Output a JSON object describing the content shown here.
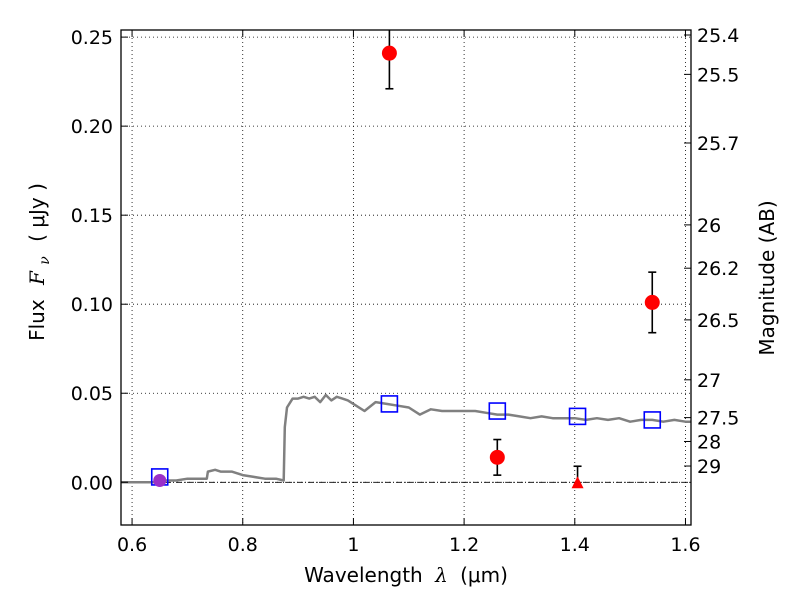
{
  "chart_data": {
    "type": "scatter",
    "xlabel": "Wavelength",
    "xlabel_symbol": "λ",
    "xlabel_unit": "(μm)",
    "ylabel": "Flux",
    "ylabel_symbol": "F",
    "ylabel_symbol_sub": "ν",
    "ylabel_unit": "( μJy )",
    "y2label": "Magnitude (AB)",
    "xlim": [
      0.58,
      1.61
    ],
    "ylim": [
      -0.024,
      0.254
    ],
    "xticks": [
      {
        "value": 0.6,
        "label": "0.6"
      },
      {
        "value": 0.8,
        "label": "0.8"
      },
      {
        "value": 1.0,
        "label": "1"
      },
      {
        "value": 1.2,
        "label": "1.2"
      },
      {
        "value": 1.4,
        "label": "1.4"
      },
      {
        "value": 1.6,
        "label": "1.6"
      }
    ],
    "yticks": [
      {
        "value": 0.0,
        "label": "0.00"
      },
      {
        "value": 0.05,
        "label": "0.05"
      },
      {
        "value": 0.1,
        "label": "0.10"
      },
      {
        "value": 0.15,
        "label": "0.15"
      },
      {
        "value": 0.2,
        "label": "0.20"
      },
      {
        "value": 0.25,
        "label": "0.25"
      }
    ],
    "y2ticks": [
      {
        "value": 25.4,
        "label": "25.4"
      },
      {
        "value": 25.5,
        "label": "25.5"
      },
      {
        "value": 25.7,
        "label": "25.7"
      },
      {
        "value": 26,
        "label": "26"
      },
      {
        "value": 26.2,
        "label": "26.2"
      },
      {
        "value": 26.5,
        "label": "26.5"
      },
      {
        "value": 27,
        "label": "27"
      },
      {
        "value": 27.5,
        "label": "27.5"
      },
      {
        "value": 28,
        "label": "28"
      },
      {
        "value": 29,
        "label": "29"
      }
    ],
    "grid": true,
    "zero_line": true,
    "colors": {
      "model": "#808080",
      "detection": "#ff0000",
      "model_photometry": "#0000ff",
      "optical_point": "#9b30c8"
    },
    "series": [
      {
        "kind": "line",
        "x": [
          0.58,
          0.64,
          0.66,
          0.68,
          0.7,
          0.72,
          0.735,
          0.737,
          0.75,
          0.76,
          0.78,
          0.8,
          0.82,
          0.84,
          0.86,
          0.874,
          0.876,
          0.88,
          0.89,
          0.9,
          0.91,
          0.92,
          0.93,
          0.94,
          0.95,
          0.96,
          0.97,
          0.98,
          0.99,
          1.0,
          1.02,
          1.04,
          1.06,
          1.08,
          1.1,
          1.12,
          1.14,
          1.16,
          1.18,
          1.2,
          1.22,
          1.24,
          1.26,
          1.28,
          1.3,
          1.32,
          1.34,
          1.36,
          1.38,
          1.4,
          1.42,
          1.44,
          1.46,
          1.48,
          1.5,
          1.52,
          1.54,
          1.56,
          1.58,
          1.6,
          1.61
        ],
        "y": [
          0.0,
          0.0,
          0.001,
          0.001,
          0.002,
          0.002,
          0.002,
          0.006,
          0.007,
          0.006,
          0.006,
          0.004,
          0.003,
          0.002,
          0.002,
          0.001,
          0.031,
          0.042,
          0.047,
          0.047,
          0.048,
          0.047,
          0.048,
          0.045,
          0.049,
          0.046,
          0.048,
          0.047,
          0.046,
          0.044,
          0.04,
          0.045,
          0.044,
          0.043,
          0.042,
          0.038,
          0.041,
          0.04,
          0.04,
          0.04,
          0.04,
          0.039,
          0.038,
          0.038,
          0.037,
          0.036,
          0.037,
          0.036,
          0.036,
          0.036,
          0.035,
          0.036,
          0.035,
          0.036,
          0.034,
          0.035,
          0.035,
          0.034,
          0.035,
          0.034,
          0.034
        ]
      },
      {
        "kind": "squares",
        "x": [
          0.65,
          1.065,
          1.26,
          1.405,
          1.54
        ],
        "y": [
          0.003,
          0.044,
          0.04,
          0.037,
          0.035
        ]
      },
      {
        "kind": "points",
        "x": [
          1.065,
          1.26,
          1.54
        ],
        "y": [
          0.241,
          0.014,
          0.101
        ],
        "yerr": [
          0.02,
          0.01,
          0.017
        ]
      },
      {
        "kind": "upper_limit",
        "x": [
          1.405
        ],
        "y": [
          0.0
        ],
        "yerr": [
          0.009
        ]
      },
      {
        "kind": "optical_point",
        "x": [
          0.65
        ],
        "y": [
          0.001
        ]
      }
    ]
  }
}
